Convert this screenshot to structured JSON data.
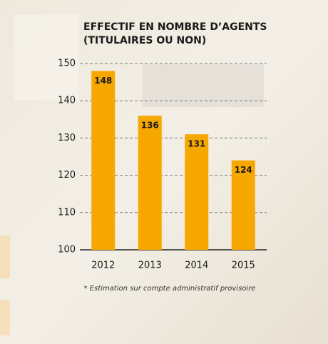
{
  "chart_data": {
    "type": "bar",
    "title": [
      "EFFECTIF EN NOMBRE D’AGENTS",
      "(TITULAIRES OU NON)"
    ],
    "categories": [
      "2012",
      "2013",
      "2014",
      "2015"
    ],
    "values": [
      148,
      136,
      131,
      124
    ],
    "color": "#f6a800",
    "ylim": [
      100,
      150
    ],
    "yticks": [
      100,
      110,
      120,
      130,
      140,
      150
    ],
    "grid": true,
    "note": "* Estimation sur compte administratif provisoire"
  }
}
